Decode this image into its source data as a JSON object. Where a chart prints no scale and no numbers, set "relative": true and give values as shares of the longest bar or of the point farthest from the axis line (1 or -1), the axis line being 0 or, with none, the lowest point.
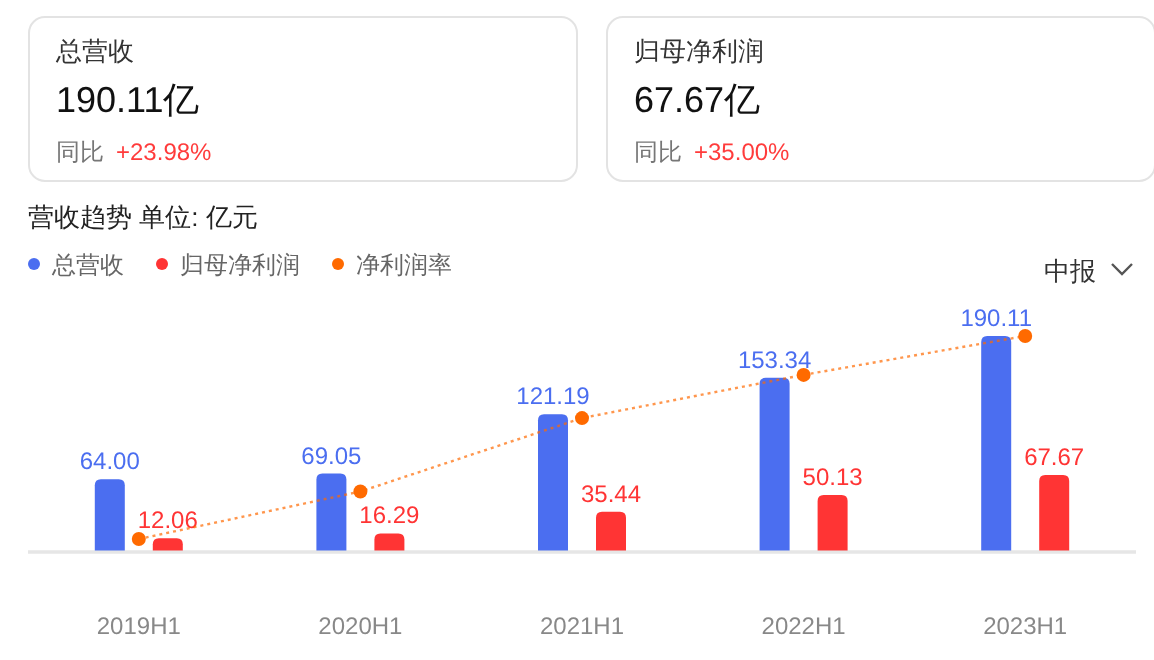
{
  "chart_data": [
    {
      "type": "other",
      "title": "总营收",
      "subtitle": "190.11亿",
      "annotations": [
        "同比",
        "+23.98%"
      ]
    },
    {
      "type": "other",
      "title": "归母净利润",
      "subtitle": "67.67亿",
      "annotations": [
        "同比",
        "+35.00%"
      ]
    },
    {
      "type": "bar",
      "title": "营收趋势  单位: 亿元",
      "annotations": [
        "中报"
      ],
      "categories": [
        "2019H1",
        "2020H1",
        "2021H1",
        "2022H1",
        "2023H1"
      ],
      "legend": "top left",
      "tick_labels": "x",
      "series": [
        {
          "name": "总营收",
          "color": "#4b6ef0",
          "values": [
            64.0,
            69.05,
            121.19,
            153.34,
            190.11
          ],
          "value_labels": [
            "64.00",
            "69.05",
            "121.19",
            "153.34",
            "190.11"
          ]
        },
        {
          "name": "归母净利润",
          "color": "#ff3434",
          "values": [
            12.06,
            16.29,
            35.44,
            50.13,
            67.67
          ],
          "value_labels": [
            "12.06",
            "16.29",
            "35.44",
            "50.13",
            "67.67"
          ]
        }
      ]
    },
    {
      "type": "line",
      "relative": true,
      "categories": [
        null,
        null,
        null,
        null,
        null
      ],
      "legend": "top left",
      "tick_labels": false,
      "series": [
        {
          "name": "净利润率",
          "color": "#ff6a00",
          "line_style": "dotted",
          "marker": "circle",
          "values": [
            0.06,
            0.28,
            0.62,
            0.82,
            1
          ]
        }
      ]
    }
  ]
}
